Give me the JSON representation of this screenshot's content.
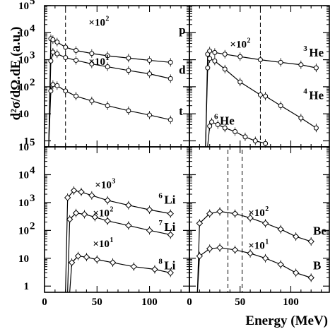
{
  "figure": {
    "y_axis_label": "d²σ/dΩ.dE (a.u.)",
    "x_axis_label": "Energy (MeV)",
    "y_tick_labels": [
      {
        "base": "1",
        "exp": ""
      },
      {
        "base": "10",
        "exp": ""
      },
      {
        "base": "10",
        "exp": "2"
      },
      {
        "base": "10",
        "exp": "3"
      },
      {
        "base": "10",
        "exp": "4"
      },
      {
        "base": "10",
        "exp": "5"
      }
    ],
    "x_tick_labels": [
      "0",
      "50",
      "100"
    ]
  },
  "chart_data": [
    {
      "type": "scatter",
      "panel": "top-left",
      "xlim": [
        0,
        138
      ],
      "ylim": [
        0.6,
        100000
      ],
      "yscale": "log",
      "vlines": [
        20
      ],
      "series": [
        {
          "name": "p",
          "factor_base": "×10",
          "factor_exp": "2",
          "marker": "circle",
          "x": [
            6,
            8,
            12,
            20,
            30,
            45,
            60,
            80,
            100,
            120
          ],
          "y": [
            6000,
            5500,
            4500,
            2900,
            2200,
            1700,
            1400,
            1150,
            950,
            800
          ]
        },
        {
          "name": "d",
          "factor_base": "×10",
          "factor_exp": "1",
          "marker": "circle",
          "x": [
            6,
            8,
            12,
            20,
            30,
            45,
            60,
            80,
            100,
            120
          ],
          "y": [
            900,
            1900,
            1650,
            1200,
            950,
            700,
            550,
            400,
            300,
            200
          ]
        },
        {
          "name": "t",
          "factor_base": "",
          "factor_exp": "",
          "marker": "circle",
          "x": [
            6,
            8,
            12,
            20,
            30,
            45,
            60,
            80,
            100,
            120
          ],
          "y": [
            70,
            120,
            110,
            70,
            45,
            30,
            20,
            13,
            9,
            6
          ]
        }
      ]
    },
    {
      "type": "scatter",
      "panel": "top-right",
      "xlim": [
        0,
        138
      ],
      "ylim": [
        0.6,
        100000
      ],
      "yscale": "log",
      "vlines": [
        70
      ],
      "series": [
        {
          "name": "3He",
          "label_pre": "3",
          "label_main": "He",
          "factor_base": "×10",
          "factor_exp": "2",
          "marker": "circle",
          "x": [
            18,
            20,
            25,
            35,
            50,
            70,
            90,
            110,
            125
          ],
          "y": [
            1600,
            2100,
            1850,
            1600,
            1300,
            1000,
            800,
            650,
            500
          ]
        },
        {
          "name": "4He",
          "label_pre": "4",
          "label_main": "He",
          "factor_base": "",
          "factor_exp": "",
          "marker": "circle",
          "x": [
            18,
            20,
            25,
            35,
            50,
            70,
            75,
            90,
            110,
            125
          ],
          "y": [
            500,
            1100,
            900,
            450,
            150,
            50,
            45,
            20,
            7,
            3
          ]
        },
        {
          "name": "6He",
          "label_pre": "6",
          "label_main": "He",
          "factor_base": "",
          "factor_exp": "",
          "marker": "circle",
          "x": [
            20,
            22,
            28,
            35,
            45,
            55,
            65,
            75
          ],
          "y": [
            3.5,
            5,
            4,
            3,
            2.2,
            1.4,
            1,
            0.8
          ]
        }
      ]
    },
    {
      "type": "scatter",
      "panel": "bottom-left",
      "xlim": [
        0,
        138
      ],
      "ylim": [
        0.6,
        100000
      ],
      "yscale": "log",
      "vlines": [],
      "series": [
        {
          "name": "6Li",
          "label_pre": "6",
          "label_main": "Li",
          "factor_base": "×10",
          "factor_exp": "3",
          "marker": "diamond",
          "x": [
            22,
            28,
            35,
            45,
            60,
            80,
            100,
            120
          ],
          "y": [
            1500,
            2700,
            2400,
            1800,
            1200,
            800,
            550,
            400
          ]
        },
        {
          "name": "7Li",
          "label_pre": "7",
          "label_main": "Li",
          "factor_base": "×10",
          "factor_exp": "2",
          "marker": "diamond",
          "x": [
            24,
            30,
            38,
            48,
            60,
            80,
            100,
            120
          ],
          "y": [
            250,
            420,
            380,
            300,
            220,
            150,
            100,
            70
          ]
        },
        {
          "name": "8Li",
          "label_pre": "8",
          "label_main": "Li",
          "factor_base": "×10",
          "factor_exp": "1",
          "marker": "diamond",
          "x": [
            26,
            32,
            40,
            50,
            65,
            85,
            105,
            120
          ],
          "y": [
            7,
            12,
            11,
            9,
            7,
            5,
            4,
            3
          ]
        }
      ]
    },
    {
      "type": "scatter",
      "panel": "bottom-right",
      "xlim": [
        0,
        138
      ],
      "ylim": [
        0.6,
        100000
      ],
      "yscale": "log",
      "vlines": [
        38,
        52
      ],
      "series": [
        {
          "name": "Be",
          "label_pre": "",
          "label_main": "Be",
          "factor_base": "×10",
          "factor_exp": "2",
          "marker": "diamond",
          "x": [
            10,
            20,
            30,
            45,
            60,
            75,
            90,
            105,
            120
          ],
          "y": [
            180,
            400,
            480,
            400,
            280,
            180,
            110,
            60,
            40
          ]
        },
        {
          "name": "B",
          "label_pre": "",
          "label_main": "B",
          "factor_base": "×10",
          "factor_exp": "1",
          "marker": "diamond",
          "x": [
            10,
            20,
            30,
            45,
            60,
            75,
            90,
            105,
            120
          ],
          "y": [
            12,
            22,
            24,
            20,
            15,
            10,
            6,
            3,
            2
          ]
        }
      ]
    }
  ]
}
